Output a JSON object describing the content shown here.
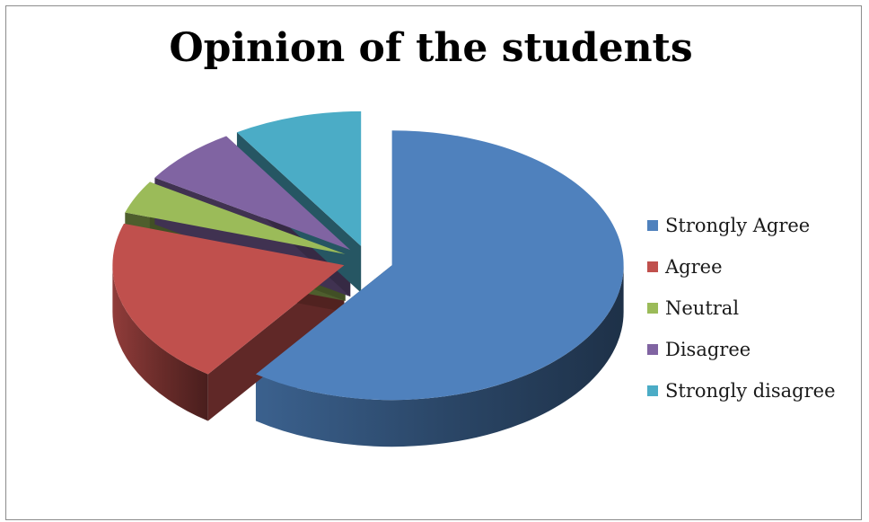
{
  "chart_data": {
    "type": "pie",
    "title": "Opinion of the students",
    "legend_position": "right",
    "exploded": true,
    "three_d": true,
    "categories": [
      "Strongly Agree",
      "Agree",
      "Neutral",
      "Disagree",
      "Strongly disagree"
    ],
    "values": [
      60,
      20,
      4,
      7,
      9
    ],
    "colors": [
      "#4f81bd",
      "#c0504d",
      "#9bbb59",
      "#8064a2",
      "#4bacc6"
    ]
  }
}
